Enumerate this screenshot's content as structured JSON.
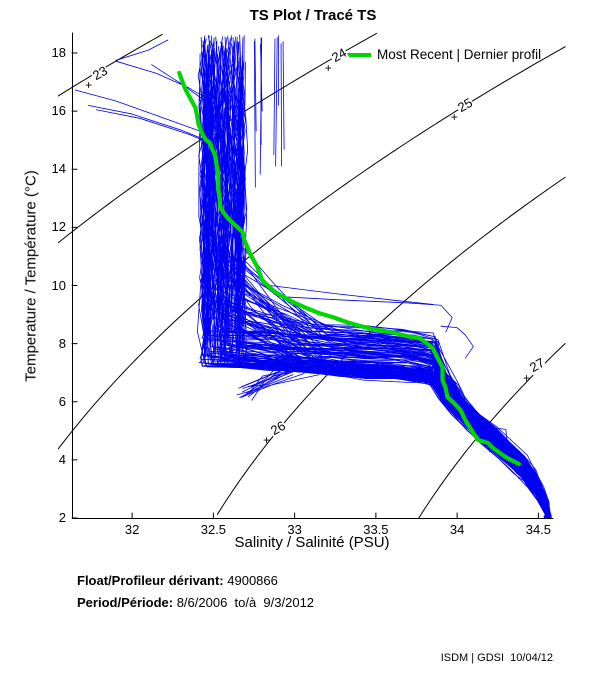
{
  "title": "TS Plot / Tracé TS",
  "legend": {
    "label": "Most Recent | Dernier profil",
    "line_color": "#00d600"
  },
  "axes": {
    "x": {
      "label": "Salinity / Salinité (PSU)",
      "ticks": [
        32,
        32.5,
        33,
        33.5,
        34,
        34.5
      ],
      "range": [
        31.63,
        34.59
      ]
    },
    "y": {
      "label": "Temperature / Température (°C)",
      "ticks": [
        2,
        4,
        6,
        8,
        10,
        12,
        14,
        16,
        18
      ],
      "range": [
        2,
        18.69
      ]
    }
  },
  "footer": {
    "float_label": "Float/Profileur dérivant:",
    "float_value": " 4900866",
    "period_label": "Period/Période:",
    "period_value": " 8/6/2006  to/à  9/3/2012",
    "credit": "ISDM | GDSI  10/04/12"
  },
  "colors": {
    "profiles": "#0000f2",
    "most_recent": "#00d600",
    "contours": "#000000",
    "axis": "#000000"
  },
  "chart_data": {
    "type": "line",
    "title": "TS Plot / Tracé TS",
    "xlabel": "Salinity / Salinité (PSU)",
    "ylabel": "Temperature / Température (°C)",
    "xlim": [
      31.63,
      34.59
    ],
    "ylim": [
      2,
      18.69
    ],
    "grid": false,
    "legend_position": "top-right-inside",
    "isopycnals": {
      "note": "sigma-t density contours, sigma = 28.152 - 0.0735T - 0.00469T^2 + (0.802 - 0.002T)(S-35)",
      "levels": [
        23,
        24,
        25,
        26,
        27
      ],
      "labels": [
        {
          "level": "23",
          "plus_S": 31.735,
          "plus_T": 16.9,
          "text_S": 31.8,
          "text_T": 17.33,
          "angle": -30
        },
        {
          "level": "24",
          "plus_S": 33.21,
          "plus_T": 17.5,
          "text_S": 33.275,
          "text_T": 17.92,
          "angle": -30
        },
        {
          "level": "25",
          "plus_S": 33.985,
          "plus_T": 15.8,
          "text_S": 34.05,
          "text_T": 16.22,
          "angle": -30
        },
        {
          "level": "26",
          "plus_S": 32.83,
          "plus_T": 4.68,
          "text_S": 32.895,
          "text_T": 5.08,
          "angle": -30
        },
        {
          "level": "27",
          "plus_S": 34.43,
          "plus_T": 6.83,
          "text_S": 34.49,
          "text_T": 7.25,
          "angle": -30
        }
      ]
    },
    "most_recent_profile": {
      "name": "Most Recent | Dernier profil",
      "points_S_T": [
        [
          32.29,
          17.32
        ],
        [
          32.31,
          17.0
        ],
        [
          32.33,
          16.73
        ],
        [
          32.36,
          16.42
        ],
        [
          32.39,
          16.11
        ],
        [
          32.4,
          15.83
        ],
        [
          32.41,
          15.52
        ],
        [
          32.43,
          15.25
        ],
        [
          32.45,
          15.04
        ],
        [
          32.48,
          14.9
        ],
        [
          32.49,
          14.73
        ],
        [
          32.51,
          14.49
        ],
        [
          32.52,
          14.15
        ],
        [
          32.53,
          13.77
        ],
        [
          32.53,
          13.35
        ],
        [
          32.54,
          12.94
        ],
        [
          32.54,
          12.74
        ],
        [
          32.56,
          12.53
        ],
        [
          32.6,
          12.25
        ],
        [
          32.64,
          12.05
        ],
        [
          32.68,
          11.84
        ],
        [
          32.69,
          11.57
        ],
        [
          32.73,
          11.05
        ],
        [
          32.77,
          10.64
        ],
        [
          32.8,
          10.19
        ],
        [
          32.83,
          10.02
        ],
        [
          32.88,
          9.78
        ],
        [
          32.93,
          9.61
        ],
        [
          32.99,
          9.43
        ],
        [
          33.07,
          9.23
        ],
        [
          33.15,
          9.05
        ],
        [
          33.23,
          8.92
        ],
        [
          33.32,
          8.74
        ],
        [
          33.4,
          8.61
        ],
        [
          33.48,
          8.5
        ],
        [
          33.59,
          8.4
        ],
        [
          33.69,
          8.26
        ],
        [
          33.77,
          8.19
        ],
        [
          33.85,
          7.85
        ],
        [
          33.88,
          7.5
        ],
        [
          33.91,
          7.19
        ],
        [
          33.91,
          6.75
        ],
        [
          33.93,
          6.47
        ],
        [
          33.94,
          6.16
        ],
        [
          33.98,
          5.96
        ],
        [
          34.02,
          5.72
        ],
        [
          34.05,
          5.37
        ],
        [
          34.1,
          4.92
        ],
        [
          34.13,
          4.68
        ],
        [
          34.19,
          4.58
        ],
        [
          34.22,
          4.41
        ],
        [
          34.28,
          4.17
        ],
        [
          34.31,
          4.06
        ],
        [
          34.38,
          3.86
        ]
      ]
    },
    "profile_ensemble": {
      "description": "dense ensemble of historical float profiles 2006-2012",
      "count": 150,
      "seed": 987654321,
      "column_S_center": 32.555,
      "column_S_spread": 0.125,
      "surface_T_max": 18.62,
      "knee_T_range": [
        7.2,
        12.4
      ],
      "band_T_range": [
        6.95,
        8.65
      ],
      "band_entry_S": 33.15,
      "tail_T_S_spread": [
        [
          6.6,
          33.92,
          0.1
        ],
        [
          6.1,
          33.97,
          0.1
        ],
        [
          5.6,
          34.05,
          0.1
        ],
        [
          5.1,
          34.15,
          0.11
        ],
        [
          4.6,
          34.24,
          0.11
        ],
        [
          4.1,
          34.34,
          0.1
        ],
        [
          3.6,
          34.42,
          0.08
        ],
        [
          3.1,
          34.48,
          0.05
        ],
        [
          2.6,
          34.53,
          0.03
        ],
        [
          2.05,
          34.565,
          0.012
        ]
      ],
      "outliers_S_T": [
        [
          [
            31.64,
            16.73
          ],
          [
            31.9,
            16.35
          ],
          [
            32.2,
            15.75
          ],
          [
            32.45,
            15.25
          ]
        ],
        [
          [
            31.73,
            16.2
          ],
          [
            32.0,
            15.9
          ],
          [
            32.3,
            15.35
          ],
          [
            32.5,
            14.9
          ]
        ],
        [
          [
            31.78,
            16.05
          ],
          [
            32.05,
            15.75
          ],
          [
            32.35,
            15.2
          ],
          [
            32.52,
            14.8
          ]
        ],
        [
          [
            31.9,
            17.75
          ],
          [
            32.1,
            18.1
          ],
          [
            32.22,
            18.45
          ]
        ],
        [
          [
            31.9,
            17.72
          ],
          [
            32.15,
            17.3
          ],
          [
            32.35,
            16.8
          ],
          [
            32.5,
            16.3
          ]
        ],
        [
          [
            32.12,
            17.6
          ],
          [
            32.3,
            16.95
          ],
          [
            32.45,
            16.35
          ],
          [
            32.55,
            15.9
          ]
        ],
        [
          [
            32.9,
            9.62
          ],
          [
            33.3,
            9.5
          ],
          [
            33.7,
            9.4
          ],
          [
            33.9,
            9.32
          ],
          [
            33.97,
            8.9
          ],
          [
            33.93,
            8.4
          ]
        ],
        [
          [
            32.85,
            10.0
          ],
          [
            33.25,
            9.72
          ],
          [
            33.6,
            9.5
          ],
          [
            33.85,
            9.35
          ]
        ],
        [
          [
            34.12,
            5.3
          ],
          [
            34.22,
            5.1
          ],
          [
            34.3,
            5.05
          ],
          [
            34.31,
            4.3
          ],
          [
            34.2,
            4.28
          ],
          [
            34.17,
            4.7
          ]
        ],
        [
          [
            33.9,
            8.6
          ],
          [
            34.0,
            8.55
          ],
          [
            34.05,
            8.3
          ],
          [
            34.1,
            7.9
          ],
          [
            34.05,
            7.5
          ]
        ],
        [
          [
            32.9,
            18.6
          ],
          [
            32.9,
            16.2
          ]
        ],
        [
          [
            32.79,
            18.3
          ],
          [
            32.8,
            16.0
          ]
        ]
      ]
    }
  }
}
